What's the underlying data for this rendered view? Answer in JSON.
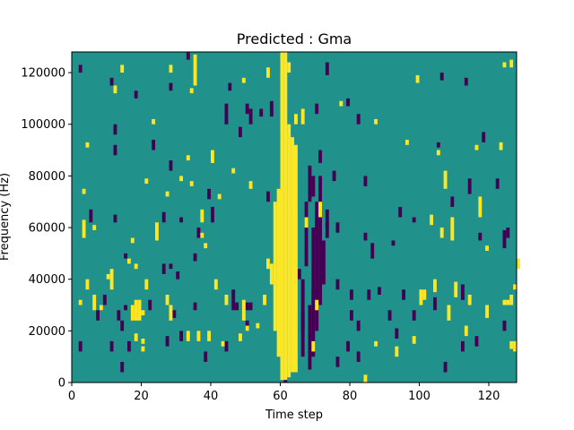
{
  "chart_data": {
    "type": "heatmap",
    "title": "Predicted : Gma",
    "xlabel": "Time step",
    "ylabel": "Frequency (Hz)",
    "xlim": [
      0,
      128
    ],
    "ylim": [
      0,
      128000
    ],
    "xticks": [
      0,
      20,
      40,
      60,
      80,
      100,
      120
    ],
    "yticks": [
      0,
      20000,
      40000,
      60000,
      80000,
      100000,
      120000
    ],
    "xtick_labels": [
      "0",
      "20",
      "40",
      "60",
      "80",
      "100",
      "120"
    ],
    "ytick_labels": [
      "0",
      "20000",
      "40000",
      "60000",
      "80000",
      "100000",
      "120000"
    ],
    "grid": false,
    "colormap": "viridis",
    "color_values": {
      "low": "#440154",
      "mid": "#21918c",
      "high": "#fde725"
    },
    "background_value": 0,
    "n_time_steps": 128,
    "n_freq_bins": 128,
    "cells_high": [
      [
        60,
        1,
        60,
        128
      ],
      [
        61,
        1,
        61,
        128
      ],
      [
        62,
        2,
        62,
        100
      ],
      [
        63,
        4,
        63,
        95
      ],
      [
        64,
        4,
        64,
        92
      ],
      [
        58,
        20,
        58,
        70
      ],
      [
        59,
        10,
        59,
        75
      ],
      [
        57,
        38,
        57,
        46
      ],
      [
        56,
        44,
        56,
        48
      ],
      [
        55,
        30,
        55,
        34
      ],
      [
        64,
        100,
        64,
        104
      ],
      [
        66,
        100,
        66,
        106
      ],
      [
        62,
        120,
        62,
        124
      ],
      [
        35,
        115,
        35,
        127
      ],
      [
        14,
        120,
        14,
        123
      ],
      [
        28,
        120,
        28,
        123
      ],
      [
        49,
        116,
        49,
        118
      ],
      [
        56,
        118,
        56,
        122
      ],
      [
        99,
        116,
        99,
        119
      ],
      [
        124,
        122,
        124,
        124
      ],
      [
        126,
        122,
        126,
        125
      ],
      [
        12,
        112,
        12,
        115
      ],
      [
        34,
        112,
        34,
        114
      ],
      [
        23,
        100,
        23,
        102
      ],
      [
        62,
        93,
        62,
        96
      ],
      [
        77,
        107,
        77,
        109
      ],
      [
        87,
        100,
        87,
        102
      ],
      [
        4,
        91,
        4,
        93
      ],
      [
        40,
        85,
        40,
        90
      ],
      [
        46,
        81,
        46,
        83
      ],
      [
        33,
        86,
        33,
        88
      ],
      [
        105,
        88,
        105,
        90
      ],
      [
        123,
        90,
        123,
        93
      ],
      [
        116,
        90,
        116,
        92
      ],
      [
        96,
        92,
        96,
        94
      ],
      [
        21,
        77,
        21,
        79
      ],
      [
        27,
        72,
        27,
        74
      ],
      [
        34,
        76,
        34,
        78
      ],
      [
        51,
        75,
        51,
        78
      ],
      [
        107,
        75,
        107,
        82
      ],
      [
        3,
        73,
        3,
        75
      ],
      [
        31,
        78,
        31,
        80
      ],
      [
        37,
        62,
        37,
        67
      ],
      [
        42,
        71,
        42,
        73
      ],
      [
        3,
        56,
        3,
        63
      ],
      [
        6,
        59,
        6,
        61
      ],
      [
        17,
        54,
        17,
        56
      ],
      [
        24,
        55,
        24,
        62
      ],
      [
        37,
        56,
        37,
        58
      ],
      [
        38,
        52,
        38,
        54
      ],
      [
        67,
        60,
        67,
        64
      ],
      [
        71,
        64,
        71,
        70
      ],
      [
        103,
        61,
        103,
        65
      ],
      [
        106,
        56,
        106,
        60
      ],
      [
        109,
        55,
        109,
        64
      ],
      [
        117,
        64,
        117,
        72
      ],
      [
        119,
        51,
        119,
        53
      ],
      [
        128,
        44,
        128,
        48
      ],
      [
        16,
        46,
        16,
        48
      ],
      [
        18,
        44,
        18,
        46
      ],
      [
        21,
        36,
        21,
        40
      ],
      [
        10,
        40,
        10,
        42
      ],
      [
        11,
        36,
        11,
        44
      ],
      [
        4,
        36,
        4,
        40
      ],
      [
        2,
        30,
        2,
        32
      ],
      [
        6,
        28,
        6,
        34
      ],
      [
        8,
        28,
        8,
        30
      ],
      [
        17,
        24,
        17,
        30
      ],
      [
        18,
        24,
        18,
        32
      ],
      [
        19,
        24,
        19,
        32
      ],
      [
        20,
        26,
        20,
        28
      ],
      [
        27,
        30,
        27,
        34
      ],
      [
        28,
        24,
        28,
        30
      ],
      [
        41,
        36,
        41,
        40
      ],
      [
        44,
        30,
        44,
        34
      ],
      [
        49,
        24,
        49,
        32
      ],
      [
        33,
        16,
        33,
        20
      ],
      [
        36,
        16,
        36,
        20
      ],
      [
        39,
        16,
        39,
        20
      ],
      [
        50,
        20,
        50,
        22
      ],
      [
        53,
        21,
        53,
        23
      ],
      [
        100,
        30,
        100,
        36
      ],
      [
        101,
        32,
        101,
        36
      ],
      [
        104,
        35,
        104,
        40
      ],
      [
        110,
        33,
        110,
        39
      ],
      [
        108,
        24,
        108,
        30
      ],
      [
        113,
        18,
        113,
        22
      ],
      [
        114,
        30,
        114,
        34
      ],
      [
        119,
        25,
        119,
        30
      ],
      [
        124,
        30,
        124,
        32
      ],
      [
        125,
        30,
        125,
        32
      ],
      [
        126,
        30,
        126,
        34
      ],
      [
        127,
        36,
        127,
        38
      ],
      [
        126,
        13,
        126,
        16
      ],
      [
        127,
        12,
        127,
        16
      ],
      [
        18,
        16,
        18,
        19
      ],
      [
        20,
        15,
        20,
        17
      ],
      [
        20,
        12,
        20,
        14
      ],
      [
        48,
        16,
        48,
        19
      ],
      [
        43,
        14,
        43,
        16
      ],
      [
        69,
        12,
        69,
        16
      ],
      [
        87,
        14,
        87,
        16
      ],
      [
        93,
        10,
        93,
        14
      ],
      [
        98,
        15,
        98,
        18
      ],
      [
        84,
        0,
        84,
        3
      ],
      [
        70,
        28,
        70,
        32
      ]
    ],
    "cells_low": [
      [
        66,
        10,
        66,
        40
      ],
      [
        68,
        5,
        68,
        30
      ],
      [
        69,
        10,
        69,
        60
      ],
      [
        70,
        20,
        70,
        70
      ],
      [
        71,
        30,
        71,
        80
      ],
      [
        67,
        45,
        67,
        70
      ],
      [
        72,
        38,
        72,
        55
      ],
      [
        73,
        56,
        73,
        62
      ],
      [
        68,
        70,
        68,
        84
      ],
      [
        69,
        72,
        69,
        80
      ],
      [
        70,
        55,
        70,
        66
      ],
      [
        71,
        85,
        71,
        90
      ],
      [
        69,
        30,
        69,
        36
      ],
      [
        2,
        120,
        2,
        123
      ],
      [
        33,
        125,
        33,
        128
      ],
      [
        45,
        113,
        45,
        116
      ],
      [
        73,
        119,
        73,
        124
      ],
      [
        50,
        104,
        50,
        108
      ],
      [
        54,
        103,
        54,
        106
      ],
      [
        70,
        104,
        70,
        108
      ],
      [
        79,
        107,
        79,
        110
      ],
      [
        106,
        117,
        106,
        120
      ],
      [
        113,
        115,
        113,
        118
      ],
      [
        11,
        115,
        11,
        118
      ],
      [
        18,
        110,
        18,
        113
      ],
      [
        28,
        113,
        28,
        116
      ],
      [
        44,
        100,
        44,
        108
      ],
      [
        51,
        100,
        51,
        106
      ],
      [
        57,
        103,
        57,
        109
      ],
      [
        12,
        96,
        12,
        100
      ],
      [
        12,
        88,
        12,
        92
      ],
      [
        23,
        90,
        23,
        94
      ],
      [
        48,
        95,
        48,
        99
      ],
      [
        82,
        100,
        82,
        104
      ],
      [
        105,
        91,
        105,
        93
      ],
      [
        118,
        93,
        118,
        97
      ],
      [
        28,
        82,
        28,
        86
      ],
      [
        39,
        71,
        39,
        75
      ],
      [
        56,
        70,
        56,
        74
      ],
      [
        75,
        78,
        75,
        82
      ],
      [
        84,
        76,
        84,
        80
      ],
      [
        109,
        68,
        109,
        72
      ],
      [
        114,
        73,
        114,
        79
      ],
      [
        122,
        75,
        122,
        79
      ],
      [
        5,
        62,
        5,
        67
      ],
      [
        12,
        62,
        12,
        65
      ],
      [
        26,
        62,
        26,
        66
      ],
      [
        31,
        62,
        31,
        64
      ],
      [
        36,
        56,
        36,
        60
      ],
      [
        40,
        62,
        40,
        68
      ],
      [
        64,
        66,
        64,
        70
      ],
      [
        73,
        60,
        73,
        67
      ],
      [
        76,
        58,
        76,
        62
      ],
      [
        84,
        55,
        84,
        58
      ],
      [
        86,
        48,
        86,
        51
      ],
      [
        86,
        51,
        86,
        54
      ],
      [
        92,
        53,
        92,
        55
      ],
      [
        94,
        64,
        94,
        68
      ],
      [
        117,
        55,
        117,
        58
      ],
      [
        124,
        52,
        124,
        59
      ],
      [
        125,
        56,
        125,
        60
      ],
      [
        98,
        62,
        98,
        64
      ],
      [
        15,
        48,
        15,
        50
      ],
      [
        26,
        42,
        26,
        46
      ],
      [
        28,
        44,
        28,
        46
      ],
      [
        30,
        40,
        30,
        43
      ],
      [
        35,
        47,
        35,
        50
      ],
      [
        46,
        32,
        46,
        36
      ],
      [
        47,
        28,
        47,
        31
      ],
      [
        50,
        28,
        50,
        31
      ],
      [
        51,
        28,
        51,
        31
      ],
      [
        7,
        24,
        7,
        28
      ],
      [
        8,
        28,
        8,
        30
      ],
      [
        9,
        30,
        9,
        34
      ],
      [
        13,
        24,
        13,
        28
      ],
      [
        14,
        20,
        14,
        24
      ],
      [
        15,
        28,
        15,
        30
      ],
      [
        22,
        28,
        22,
        32
      ],
      [
        29,
        25,
        29,
        28
      ],
      [
        35,
        28,
        35,
        31
      ],
      [
        76,
        36,
        76,
        40
      ],
      [
        80,
        32,
        80,
        36
      ],
      [
        80,
        24,
        80,
        28
      ],
      [
        85,
        32,
        85,
        36
      ],
      [
        88,
        34,
        88,
        37
      ],
      [
        91,
        24,
        91,
        28
      ],
      [
        95,
        32,
        95,
        36
      ],
      [
        104,
        28,
        104,
        33
      ],
      [
        112,
        32,
        112,
        38
      ],
      [
        2,
        12,
        2,
        16
      ],
      [
        11,
        12,
        11,
        16
      ],
      [
        14,
        4,
        14,
        8
      ],
      [
        16,
        12,
        16,
        16
      ],
      [
        27,
        14,
        27,
        18
      ],
      [
        31,
        16,
        31,
        20
      ],
      [
        38,
        8,
        38,
        12
      ],
      [
        44,
        12,
        44,
        16
      ],
      [
        50,
        20,
        50,
        24
      ],
      [
        76,
        6,
        76,
        10
      ],
      [
        79,
        12,
        79,
        16
      ],
      [
        82,
        8,
        82,
        12
      ],
      [
        82,
        20,
        82,
        24
      ],
      [
        93,
        17,
        93,
        21
      ],
      [
        98,
        24,
        98,
        28
      ],
      [
        107,
        4,
        107,
        8
      ],
      [
        112,
        12,
        112,
        16
      ],
      [
        116,
        14,
        116,
        18
      ],
      [
        124,
        20,
        124,
        24
      ],
      [
        46,
        28,
        46,
        32
      ],
      [
        61,
        0,
        61,
        4
      ],
      [
        66,
        20,
        66,
        28
      ],
      [
        65,
        40,
        65,
        44
      ]
    ]
  }
}
